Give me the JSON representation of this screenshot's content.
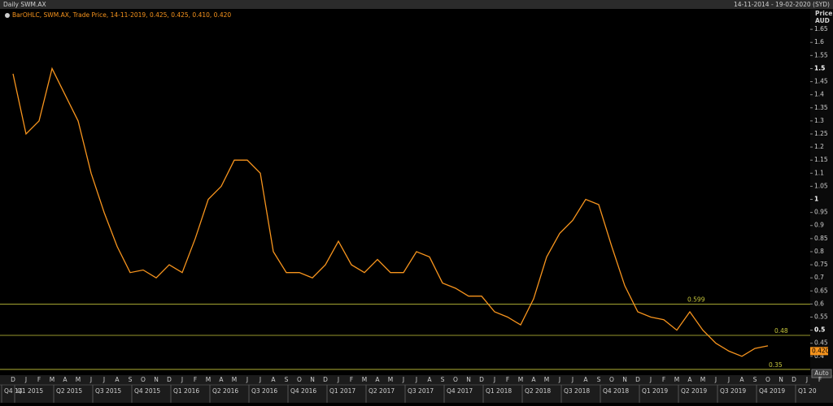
{
  "chart_data": {
    "type": "line",
    "title": "Daily SWM.AX",
    "date_range": "14-11-2014 - 19-02-2020 (SYD)",
    "legend_text": "BarOHLC, SWM.AX, Trade Price, 14-11-2019, 0.425, 0.425, 0.410, 0.420",
    "y_label": [
      "Price",
      "AUD"
    ],
    "auto_button": "Auto",
    "categories": [
      "D",
      "J",
      "F",
      "M",
      "A",
      "M",
      "J",
      "J",
      "A",
      "S",
      "O",
      "N",
      "D",
      "J",
      "F",
      "M",
      "A",
      "M",
      "J",
      "J",
      "A",
      "S",
      "O",
      "N",
      "D",
      "J",
      "F",
      "M",
      "A",
      "M",
      "J",
      "J",
      "A",
      "S",
      "O",
      "N",
      "D",
      "J",
      "F",
      "M",
      "A",
      "M",
      "J",
      "J",
      "A",
      "S",
      "O",
      "N",
      "D",
      "J",
      "F",
      "M",
      "A",
      "M",
      "J",
      "J",
      "A",
      "S",
      "O",
      "N",
      "D",
      "J",
      "F"
    ],
    "quarters": [
      "Q4 14",
      "Q1 2015",
      "Q2 2015",
      "Q3 2015",
      "Q4 2015",
      "Q1 2016",
      "Q2 2016",
      "Q3 2016",
      "Q4 2016",
      "Q1 2017",
      "Q2 2017",
      "Q3 2017",
      "Q4 2017",
      "Q1 2018",
      "Q2 2018",
      "Q3 2018",
      "Q4 2018",
      "Q1 2019",
      "Q2 2019",
      "Q3 2019",
      "Q4 2019",
      "Q1 20"
    ],
    "series": [
      {
        "name": "SWM.AX",
        "color": "#f7941d",
        "values": [
          1.48,
          1.25,
          1.3,
          1.5,
          1.4,
          1.3,
          1.1,
          0.95,
          0.82,
          0.72,
          0.73,
          0.7,
          0.75,
          0.72,
          0.85,
          1.0,
          1.05,
          1.15,
          1.15,
          1.1,
          0.8,
          0.72,
          0.72,
          0.7,
          0.75,
          0.84,
          0.75,
          0.72,
          0.77,
          0.72,
          0.72,
          0.8,
          0.78,
          0.68,
          0.66,
          0.63,
          0.63,
          0.57,
          0.55,
          0.52,
          0.62,
          0.78,
          0.87,
          0.92,
          1.0,
          0.98,
          0.82,
          0.67,
          0.57,
          0.55,
          0.54,
          0.5,
          0.57,
          0.5,
          0.45,
          0.42,
          0.4,
          0.43,
          0.44,
          null,
          null,
          null,
          null
        ]
      }
    ],
    "levels": [
      {
        "value": 0.599
      },
      {
        "value": 0.48
      },
      {
        "value": 0.35
      }
    ],
    "level_color": "#c8c83c",
    "last_price": {
      "value": 0.42,
      "label": "0.420"
    },
    "ylim": [
      0.328,
      1.728
    ],
    "yticks": [
      0.4,
      0.45,
      0.5,
      0.55,
      0.6,
      0.65,
      0.7,
      0.75,
      0.8,
      0.85,
      0.9,
      0.95,
      1,
      1.05,
      1.1,
      1.15,
      1.2,
      1.25,
      1.3,
      1.35,
      1.4,
      1.45,
      1.5,
      1.55,
      1.6,
      1.65
    ]
  }
}
